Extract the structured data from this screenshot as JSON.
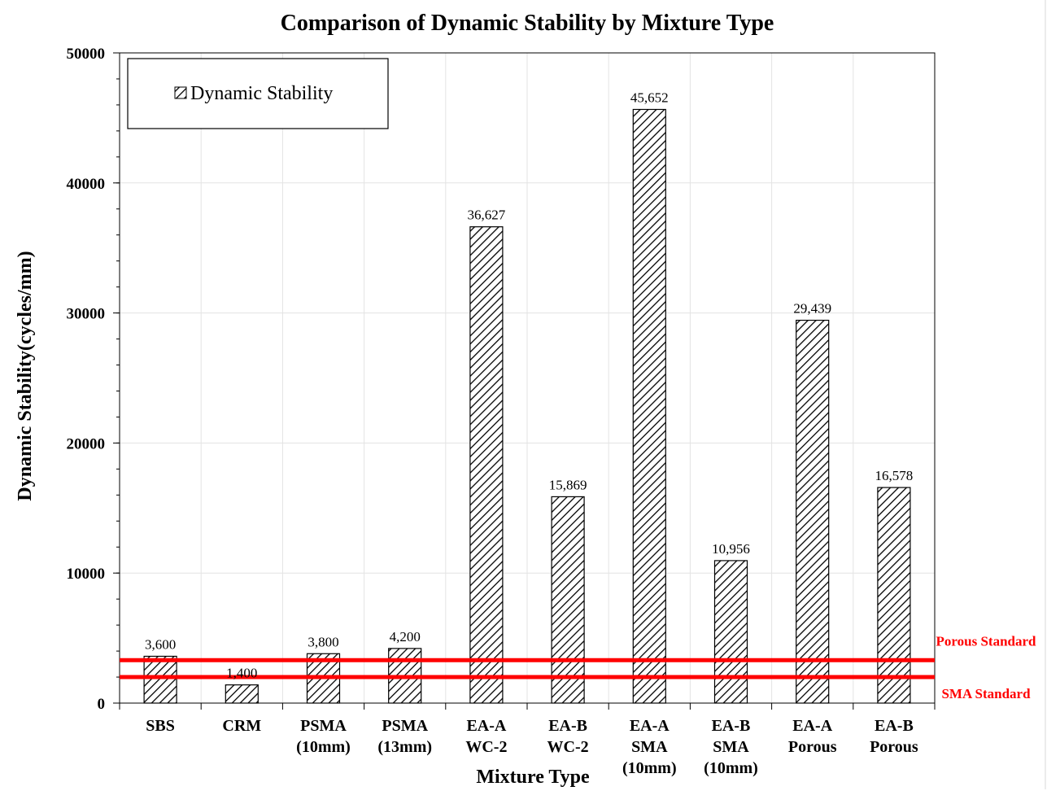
{
  "chart_data": {
    "type": "bar",
    "title": "Comparison of Dynamic Stability by Mixture Type",
    "xlabel": "Mixture Type",
    "ylabel": "Dynamic Stability(cycles/mm)",
    "ylim": [
      0,
      50000
    ],
    "yticks": [
      0,
      10000,
      20000,
      30000,
      40000,
      50000
    ],
    "ytick_labels": [
      "0",
      "10000",
      "20000",
      "30000",
      "40000",
      "50000"
    ],
    "grid": true,
    "legend": {
      "position": "top-left",
      "entries": [
        "Dynamic Stability"
      ]
    },
    "categories": [
      [
        "SBS"
      ],
      [
        "CRM"
      ],
      [
        "PSMA",
        "(10mm)"
      ],
      [
        "PSMA",
        "(13mm)"
      ],
      [
        "EA-A",
        "WC-2"
      ],
      [
        "EA-B",
        "WC-2"
      ],
      [
        "EA-A",
        "SMA",
        "(10mm)"
      ],
      [
        "EA-B",
        "SMA",
        "(10mm)"
      ],
      [
        "EA-A",
        "Porous"
      ],
      [
        "EA-B",
        "Porous"
      ]
    ],
    "series": [
      {
        "name": "Dynamic Stability",
        "values": [
          3600,
          1400,
          3800,
          4200,
          36627,
          15869,
          45652,
          10956,
          29439,
          16578
        ],
        "labels": [
          "3,600",
          "1,400",
          "3,800",
          "4,200",
          "36,627",
          "15,869",
          "45,652",
          "10,956",
          "29,439",
          "16,578"
        ]
      }
    ],
    "reference_lines": [
      {
        "name": "Porous Standard",
        "value": 3300,
        "color": "#ff0000"
      },
      {
        "name": "SMA Standard",
        "value": 2000,
        "color": "#ff0000"
      }
    ]
  }
}
